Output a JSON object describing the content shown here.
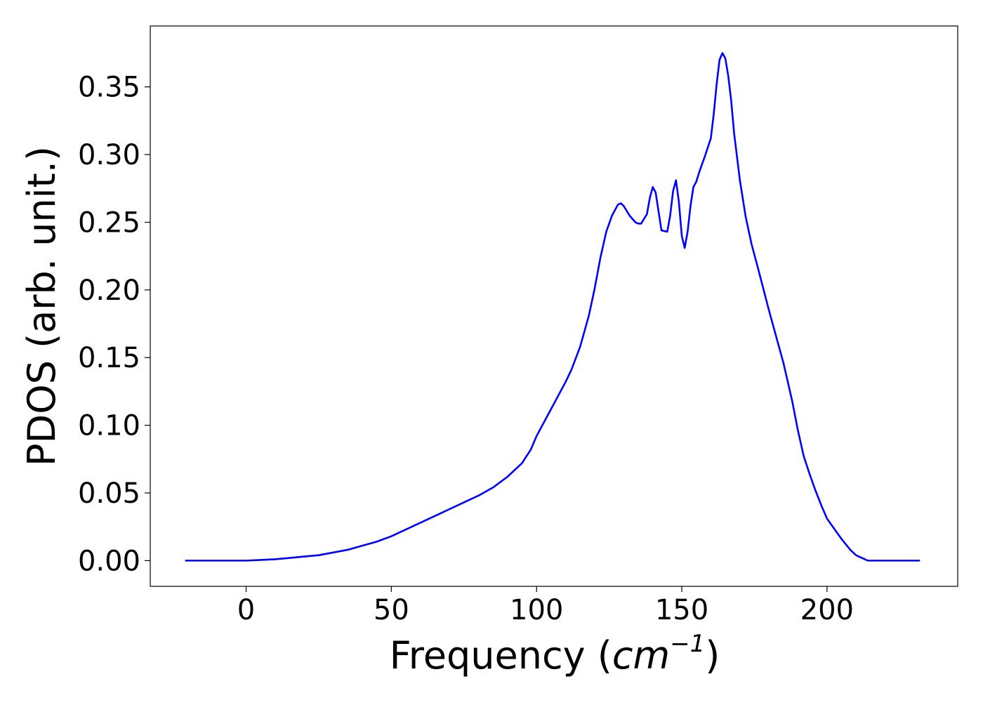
{
  "chart_data": {
    "type": "line",
    "xlabel": "Frequency (cm−1)",
    "xlabel_parts": {
      "prefix": "Frequency (",
      "unit_base": "cm",
      "unit_exponent": "−1",
      "suffix": ")"
    },
    "ylabel": "PDOS (arb. unit.)",
    "xlim": [
      -33,
      245
    ],
    "ylim": [
      -0.019,
      0.395
    ],
    "x_ticks": [
      0,
      50,
      100,
      150,
      200
    ],
    "x_tick_labels": [
      "0",
      "50",
      "100",
      "150",
      "200"
    ],
    "y_ticks": [
      0.0,
      0.05,
      0.1,
      0.15,
      0.2,
      0.25,
      0.3,
      0.35
    ],
    "y_tick_labels": [
      "0.00",
      "0.05",
      "0.10",
      "0.15",
      "0.20",
      "0.25",
      "0.30",
      "0.35"
    ],
    "grid": false,
    "line_color": "#0000ff",
    "series": [
      {
        "x": [
          -21,
          0,
          5,
          10,
          15,
          20,
          25,
          30,
          35,
          40,
          45,
          50,
          55,
          60,
          65,
          70,
          75,
          80,
          85,
          90,
          95,
          98,
          100,
          105,
          110,
          112,
          115,
          118,
          120,
          122,
          124,
          126,
          128,
          129,
          130,
          132,
          134,
          135,
          136,
          138,
          139,
          140,
          141,
          142,
          143,
          145,
          146,
          147,
          148,
          149,
          150,
          151,
          152,
          153,
          154,
          155,
          156,
          158,
          160,
          161,
          162,
          163,
          164,
          165,
          166,
          167,
          168,
          170,
          172,
          174,
          176,
          180,
          185,
          188,
          190,
          192,
          194,
          196,
          198,
          200,
          205,
          208,
          210,
          212,
          213,
          214,
          215,
          216,
          220,
          225,
          232
        ],
        "y": [
          0.0,
          0.0,
          0.0005,
          0.001,
          0.002,
          0.003,
          0.004,
          0.006,
          0.008,
          0.011,
          0.014,
          0.018,
          0.023,
          0.028,
          0.033,
          0.038,
          0.043,
          0.048,
          0.054,
          0.062,
          0.072,
          0.082,
          0.092,
          0.112,
          0.132,
          0.141,
          0.158,
          0.181,
          0.201,
          0.224,
          0.243,
          0.255,
          0.263,
          0.264,
          0.262,
          0.255,
          0.25,
          0.249,
          0.249,
          0.256,
          0.268,
          0.276,
          0.272,
          0.258,
          0.244,
          0.243,
          0.255,
          0.273,
          0.281,
          0.265,
          0.24,
          0.231,
          0.243,
          0.262,
          0.276,
          0.28,
          0.287,
          0.299,
          0.312,
          0.33,
          0.352,
          0.37,
          0.375,
          0.371,
          0.358,
          0.34,
          0.316,
          0.281,
          0.254,
          0.234,
          0.218,
          0.185,
          0.146,
          0.118,
          0.096,
          0.077,
          0.064,
          0.052,
          0.041,
          0.031,
          0.016,
          0.008,
          0.004,
          0.002,
          0.001,
          0.0,
          0.0,
          0.0,
          0.0,
          0.0,
          0.0
        ]
      }
    ]
  }
}
